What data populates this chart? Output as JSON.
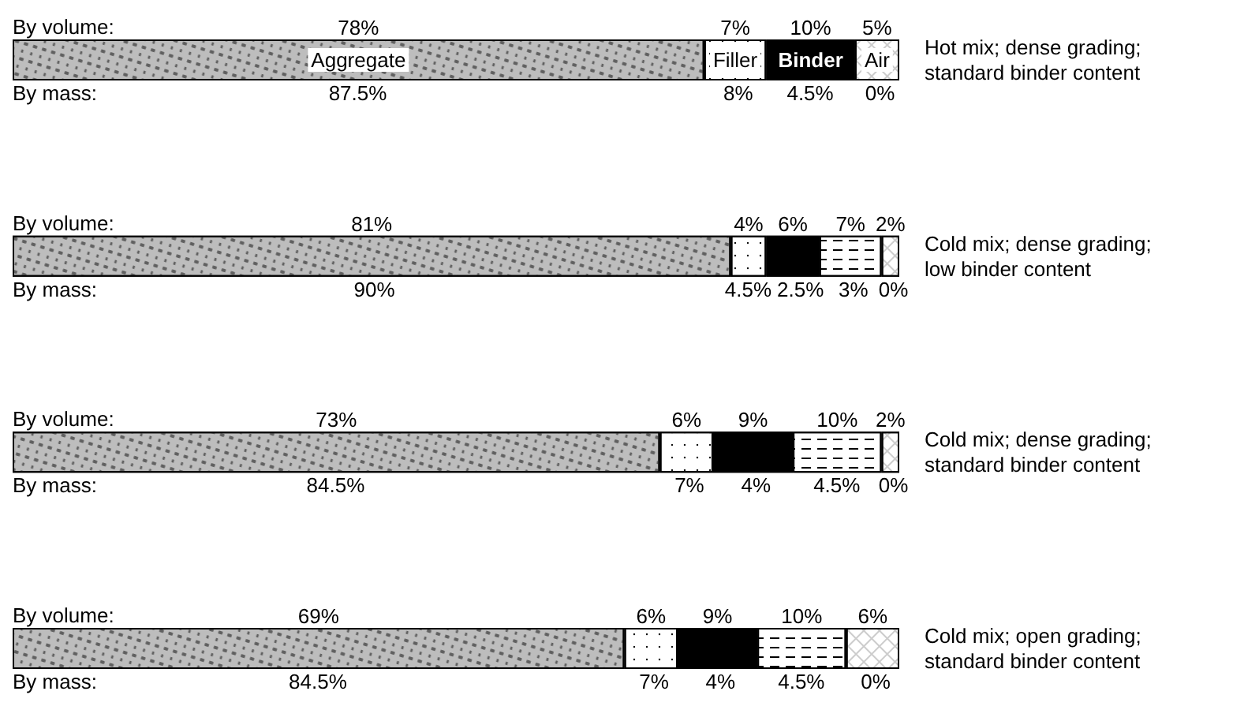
{
  "chart_data": {
    "type": "bar",
    "orientation": "horizontal",
    "stacked": true,
    "legend": false,
    "categories": [
      "Hot mix; dense grading; standard binder content",
      "Cold mix; dense grading; low binder content",
      "Cold mix; dense grading; standard binder content",
      "Cold mix; open grading; standard binder content"
    ],
    "series": [
      {
        "name": "Aggregate",
        "color": "#bdbdbd",
        "values": [
          78,
          81,
          73,
          69
        ],
        "value_labels": [
          "78%",
          "81%",
          "73%",
          "69%"
        ]
      },
      {
        "name": "Filler",
        "color": "#ffffff",
        "values": [
          7,
          4,
          6,
          6
        ],
        "value_labels": [
          "7%",
          "4%",
          "6%",
          "6%"
        ]
      },
      {
        "name": "Binder",
        "color": "#000000",
        "values": [
          10,
          6,
          9,
          9
        ],
        "value_labels": [
          "10%",
          "6%",
          "9%",
          "9%"
        ]
      },
      {
        "color": "#ffffff",
        "values": [
          null,
          7,
          10,
          10
        ],
        "value_labels": [
          null,
          "7%",
          "10%",
          "10%"
        ]
      },
      {
        "name": "Air",
        "color": "#ffffff",
        "values": [
          5,
          2,
          2,
          6
        ],
        "value_labels": [
          "5%",
          "2%",
          "2%",
          "6%"
        ]
      }
    ],
    "annotations": [
      "By volume:",
      "By mass:",
      "87.5%",
      "8%",
      "4.5%",
      "0%",
      "By volume:",
      "By mass:",
      "90%",
      "4.5%",
      "2.5%",
      "3%",
      "0%",
      "By volume:",
      "By mass:",
      "84.5%",
      "7%",
      "4%",
      "4.5%",
      "0%",
      "By volume:",
      "By mass:",
      "84.5%",
      "7%",
      "4%",
      "4.5%",
      "0%"
    ]
  }
}
